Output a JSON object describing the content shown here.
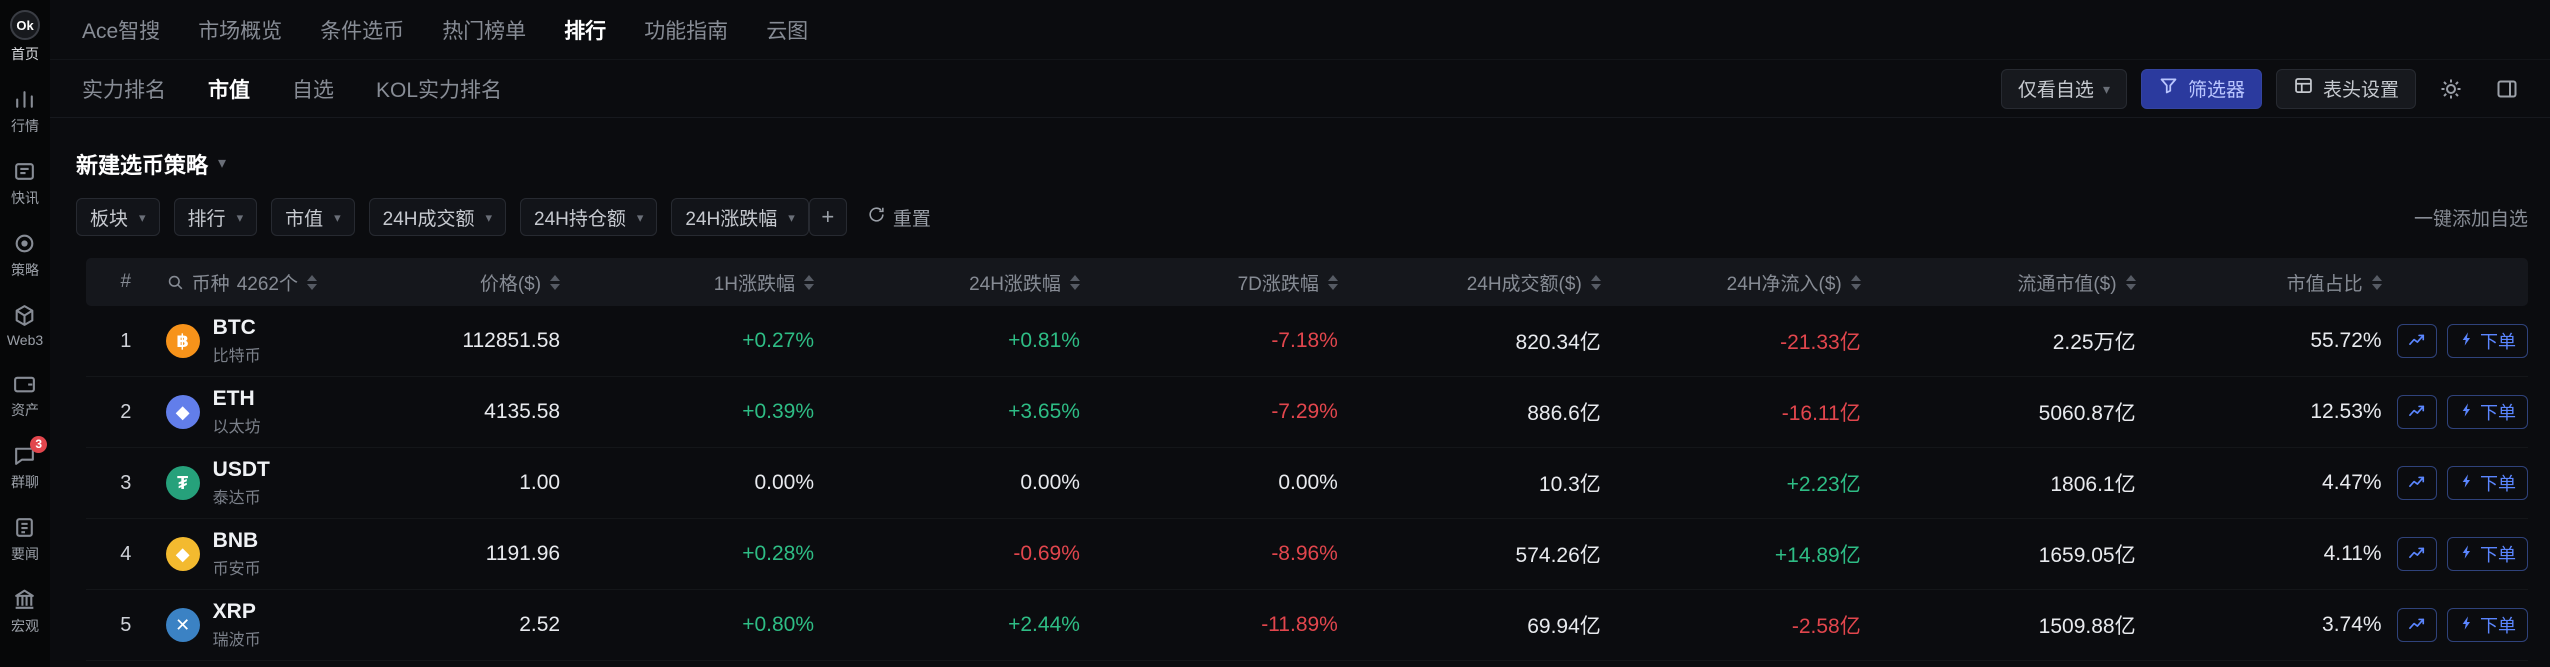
{
  "colors": {
    "up": "#2ebd85",
    "down": "#e2464d",
    "accent_blue": "#5b86ff",
    "filter_button_bg": "#2b3a9e",
    "badge_red": "#e2464d"
  },
  "sidebar": {
    "logo": {
      "text": "Ok",
      "label": "首页"
    },
    "items": [
      {
        "key": "market",
        "icon": "chart-bars-icon",
        "label": "行情"
      },
      {
        "key": "news",
        "icon": "news-flash-icon",
        "label": "快讯"
      },
      {
        "key": "strategy",
        "icon": "strategy-icon",
        "label": "策略"
      },
      {
        "key": "web3",
        "icon": "web3-icon",
        "label": "Web3"
      },
      {
        "key": "assets",
        "icon": "assets-icon",
        "label": "资产"
      },
      {
        "key": "chat",
        "icon": "chat-icon",
        "label": "群聊",
        "badge": "3"
      },
      {
        "key": "headlines",
        "icon": "headlines-icon",
        "label": "要闻"
      },
      {
        "key": "macro",
        "icon": "macro-icon",
        "label": "宏观"
      }
    ]
  },
  "topnav": {
    "items": [
      {
        "key": "ace-search",
        "label": "Ace智搜",
        "active": false
      },
      {
        "key": "market-overview",
        "label": "市场概览",
        "active": false
      },
      {
        "key": "coin-screener",
        "label": "条件选币",
        "active": false
      },
      {
        "key": "hot-lists",
        "label": "热门榜单",
        "active": false
      },
      {
        "key": "ranking",
        "label": "排行",
        "active": true
      },
      {
        "key": "feature-guide",
        "label": "功能指南",
        "active": false
      },
      {
        "key": "cloud-map",
        "label": "云图",
        "active": false
      }
    ]
  },
  "tabbar": {
    "tabs": [
      {
        "key": "strength-ranking",
        "label": "实力排名",
        "active": false
      },
      {
        "key": "market-cap",
        "label": "市值",
        "active": true
      },
      {
        "key": "watchlist",
        "label": "自选",
        "active": false
      },
      {
        "key": "kol-strength-ranking",
        "label": "KOL实力排名",
        "active": false
      }
    ],
    "actions": {
      "watchlist_only": "仅看自选",
      "filter": "筛选器",
      "header_settings": "表头设置"
    }
  },
  "strategy": {
    "title": "新建选币策略"
  },
  "filters": {
    "chips": [
      {
        "key": "sector",
        "label": "板块"
      },
      {
        "key": "ranking",
        "label": "排行"
      },
      {
        "key": "market-cap",
        "label": "市值"
      },
      {
        "key": "volume-24h",
        "label": "24H成交额"
      },
      {
        "key": "open-interest-24h",
        "label": "24H持仓额"
      },
      {
        "key": "change-24h",
        "label": "24H涨跌幅"
      }
    ],
    "add_label": "+",
    "reset_label": "重置",
    "right_link": "一键添加自选"
  },
  "table": {
    "coin_count": "4262个",
    "order_label": "下单",
    "headers": {
      "rank": "#",
      "coin": "币种",
      "price": "价格($)",
      "change_1h": "1H涨跌幅",
      "change_24h": "24H涨跌幅",
      "change_7d": "7D涨跌幅",
      "volume": "24H成交额($)",
      "net_inflow": "24H净流入($)",
      "market_cap": "流通市值($)",
      "dominance": "市值占比"
    },
    "rows": [
      {
        "rank": "1",
        "symbol": "BTC",
        "name": "比特币",
        "icon_bg": "#f7931a",
        "icon_glyph": "฿",
        "price": "112851.58",
        "change_1h": "+0.27%",
        "change_24h": "+0.81%",
        "change_7d": "-7.18%",
        "volume": "820.34亿",
        "net_inflow": "-21.33亿",
        "market_cap": "2.25万亿",
        "dominance": "55.72%"
      },
      {
        "rank": "2",
        "symbol": "ETH",
        "name": "以太坊",
        "icon_bg": "#627eea",
        "icon_glyph": "◆",
        "price": "4135.58",
        "change_1h": "+0.39%",
        "change_24h": "+3.65%",
        "change_7d": "-7.29%",
        "volume": "886.6亿",
        "net_inflow": "-16.11亿",
        "market_cap": "5060.87亿",
        "dominance": "12.53%"
      },
      {
        "rank": "3",
        "symbol": "USDT",
        "name": "泰达币",
        "icon_bg": "#26a17b",
        "icon_glyph": "₮",
        "price": "1.00",
        "change_1h": "0.00%",
        "change_24h": "0.00%",
        "change_7d": "0.00%",
        "volume": "10.3亿",
        "net_inflow": "+2.23亿",
        "market_cap": "1806.1亿",
        "dominance": "4.47%"
      },
      {
        "rank": "4",
        "symbol": "BNB",
        "name": "币安币",
        "icon_bg": "#f3ba2f",
        "icon_glyph": "◆",
        "price": "1191.96",
        "change_1h": "+0.28%",
        "change_24h": "-0.69%",
        "change_7d": "-8.96%",
        "volume": "574.26亿",
        "net_inflow": "+14.89亿",
        "market_cap": "1659.05亿",
        "dominance": "4.11%"
      },
      {
        "rank": "5",
        "symbol": "XRP",
        "name": "瑞波币",
        "icon_bg": "#3b82c4",
        "icon_glyph": "✕",
        "price": "2.52",
        "change_1h": "+0.80%",
        "change_24h": "+2.44%",
        "change_7d": "-11.89%",
        "volume": "69.94亿",
        "net_inflow": "-2.58亿",
        "market_cap": "1509.88亿",
        "dominance": "3.74%"
      }
    ]
  }
}
